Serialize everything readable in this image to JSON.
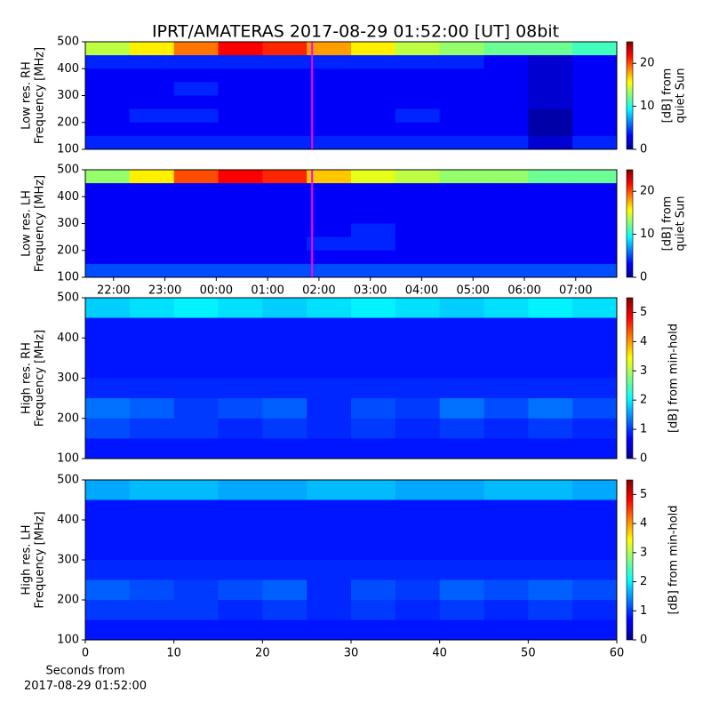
{
  "title": "IPRT/AMATERAS 2017-08-29 01:52:00 [UT]   08bit",
  "chart_data": [
    {
      "type": "heatmap",
      "ylabel": [
        "Low res. RH",
        "Frequency [MHz]"
      ],
      "xlim": [
        "21:27",
        "07:48"
      ],
      "ylim": [
        100,
        500
      ],
      "yticks": [
        100,
        200,
        300,
        400,
        500
      ],
      "vline": "01:52",
      "vline_color": "#ff00ff",
      "colormap": "jet",
      "clim": [
        0,
        25
      ],
      "cticks": [
        0,
        10,
        20
      ],
      "clabel": [
        "[dB] from",
        "quiet Sun"
      ],
      "z": [
        [
          14,
          16,
          19,
          22,
          21,
          18,
          16,
          14,
          13,
          12,
          12,
          11
        ],
        [
          4,
          4,
          4,
          4,
          4,
          4,
          4,
          4,
          4,
          3,
          2,
          3
        ],
        [
          3,
          3,
          3,
          3,
          3,
          3,
          3,
          3,
          3,
          3,
          2,
          3
        ],
        [
          3,
          3,
          4,
          3,
          3,
          3,
          3,
          3,
          3,
          3,
          2,
          3
        ],
        [
          3,
          3,
          3,
          3,
          3,
          3,
          3,
          3,
          3,
          3,
          2,
          3
        ],
        [
          3,
          4,
          4,
          3,
          3,
          3,
          3,
          4,
          3,
          3,
          1,
          3
        ],
        [
          3,
          3,
          3,
          3,
          3,
          3,
          3,
          3,
          3,
          3,
          1,
          3
        ],
        [
          4,
          4,
          4,
          4,
          4,
          4,
          4,
          4,
          4,
          4,
          2,
          4
        ]
      ]
    },
    {
      "type": "heatmap",
      "ylabel": [
        "Low res. LH",
        "Frequency [MHz]"
      ],
      "xlim": [
        "21:27",
        "07:48"
      ],
      "ylim": [
        100,
        500
      ],
      "yticks": [
        100,
        200,
        300,
        400,
        500
      ],
      "xticks": [
        "22:00",
        "23:00",
        "00:00",
        "01:00",
        "02:00",
        "03:00",
        "04:00",
        "05:00",
        "06:00",
        "07:00"
      ],
      "vline": "01:52",
      "vline_color": "#ff00ff",
      "colormap": "jet",
      "clim": [
        0,
        25
      ],
      "cticks": [
        0,
        10,
        20
      ],
      "clabel": [
        "[dB] from",
        "quiet Sun"
      ],
      "z": [
        [
          13,
          16,
          20,
          22,
          21,
          17,
          15,
          14,
          13,
          13,
          12,
          12
        ],
        [
          3,
          3,
          3,
          3,
          3,
          3,
          3,
          3,
          3,
          3,
          3,
          3
        ],
        [
          3,
          3,
          3,
          3,
          3,
          3,
          3,
          3,
          3,
          3,
          3,
          3
        ],
        [
          3,
          3,
          3,
          3,
          3,
          3,
          3,
          3,
          3,
          3,
          3,
          3
        ],
        [
          3,
          3,
          3,
          3,
          3,
          3,
          4,
          3,
          3,
          3,
          3,
          3
        ],
        [
          3,
          3,
          3,
          3,
          3,
          4,
          4,
          3,
          3,
          3,
          3,
          3
        ],
        [
          3,
          3,
          3,
          3,
          3,
          3,
          3,
          3,
          3,
          3,
          3,
          3
        ],
        [
          5,
          5,
          5,
          5,
          5,
          5,
          5,
          5,
          5,
          5,
          5,
          5
        ]
      ]
    },
    {
      "type": "heatmap",
      "ylabel": [
        "High res. RH",
        "Frequency [MHz]"
      ],
      "xlim": [
        0,
        60
      ],
      "ylim": [
        100,
        500
      ],
      "yticks": [
        100,
        200,
        300,
        400,
        500
      ],
      "colormap": "jet",
      "clim": [
        0,
        5.5
      ],
      "cticks": [
        0,
        1,
        2,
        3,
        4,
        5
      ],
      "clabel": [
        "[dB] from min-hold"
      ],
      "z": [
        [
          1.8,
          1.9,
          2,
          1.9,
          1.8,
          1.9,
          2,
          1.9,
          1.8,
          1.9,
          2,
          1.9
        ],
        [
          0.8,
          0.8,
          0.8,
          0.8,
          0.8,
          0.8,
          0.8,
          0.8,
          0.8,
          0.8,
          0.8,
          0.8
        ],
        [
          0.8,
          0.8,
          0.8,
          0.8,
          0.8,
          0.8,
          0.8,
          0.8,
          0.8,
          0.8,
          0.8,
          0.8
        ],
        [
          0.8,
          0.8,
          0.8,
          0.8,
          0.8,
          0.8,
          0.8,
          0.8,
          0.8,
          0.8,
          0.8,
          0.8
        ],
        [
          0.9,
          0.9,
          0.9,
          0.9,
          0.9,
          0.9,
          0.9,
          0.9,
          0.9,
          0.9,
          0.9,
          0.9
        ],
        [
          1.3,
          1.2,
          1,
          1.1,
          1.2,
          0.9,
          1.1,
          1,
          1.3,
          1.1,
          1.3,
          1.1
        ],
        [
          1.1,
          1,
          1,
          0.9,
          1,
          0.9,
          1,
          0.9,
          1,
          0.9,
          1,
          0.9
        ],
        [
          0.8,
          0.8,
          0.8,
          0.8,
          0.8,
          0.8,
          0.8,
          0.8,
          0.8,
          0.8,
          0.8,
          0.8
        ]
      ]
    },
    {
      "type": "heatmap",
      "ylabel": [
        "High res. LH",
        "Frequency [MHz]"
      ],
      "xlim": [
        0,
        60
      ],
      "ylim": [
        100,
        500
      ],
      "yticks": [
        100,
        200,
        300,
        400,
        500
      ],
      "xticks": [
        0,
        10,
        20,
        30,
        40,
        50,
        60
      ],
      "xlabel": [
        "Seconds from",
        "2017-08-29 01:52:00"
      ],
      "colormap": "jet",
      "clim": [
        0,
        5.5
      ],
      "cticks": [
        0,
        1,
        2,
        3,
        4,
        5
      ],
      "clabel": [
        "[dB] from min-hold"
      ],
      "z": [
        [
          1.6,
          1.7,
          1.7,
          1.6,
          1.6,
          1.7,
          1.7,
          1.6,
          1.6,
          1.7,
          1.7,
          1.6
        ],
        [
          0.8,
          0.8,
          0.8,
          0.8,
          0.8,
          0.8,
          0.8,
          0.8,
          0.8,
          0.8,
          0.8,
          0.8
        ],
        [
          0.8,
          0.8,
          0.8,
          0.8,
          0.8,
          0.8,
          0.8,
          0.8,
          0.8,
          0.8,
          0.8,
          0.8
        ],
        [
          0.8,
          0.8,
          0.8,
          0.8,
          0.8,
          0.8,
          0.8,
          0.8,
          0.8,
          0.8,
          0.8,
          0.8
        ],
        [
          0.9,
          0.9,
          0.9,
          0.9,
          0.9,
          0.9,
          0.9,
          0.9,
          0.9,
          0.9,
          0.9,
          0.9
        ],
        [
          1.2,
          1.1,
          1,
          1.1,
          1.2,
          0.9,
          1.1,
          1,
          1.2,
          1.1,
          1.2,
          1.1
        ],
        [
          1,
          1,
          1,
          0.9,
          1,
          0.9,
          1,
          0.9,
          1,
          0.9,
          1,
          0.9
        ],
        [
          0.8,
          0.8,
          0.8,
          0.8,
          0.8,
          0.8,
          0.8,
          0.8,
          0.8,
          0.8,
          0.8,
          0.8
        ]
      ]
    }
  ]
}
